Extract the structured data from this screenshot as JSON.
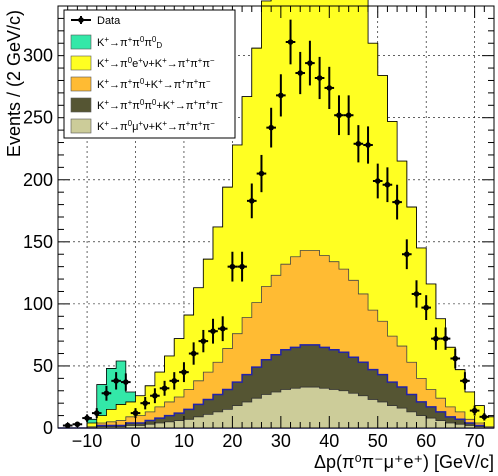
{
  "chart_data": {
    "type": "bar",
    "xlabel": "Δp(π⁰π⁻μ⁺e⁺) [GeV/c]",
    "ylabel": "Events / (2 GeV/c)",
    "xlim": [
      -16,
      74
    ],
    "ylim": [
      0,
      340
    ],
    "x_ticks": [
      -10,
      0,
      10,
      20,
      30,
      40,
      50,
      60,
      70
    ],
    "y_ticks": [
      0,
      50,
      100,
      150,
      200,
      250,
      300
    ],
    "grid": true,
    "legend_position": "top-left",
    "bin_width": 2,
    "bins": [
      -16,
      -14,
      -12,
      -10,
      -8,
      -6,
      -4,
      -2,
      0,
      2,
      4,
      6,
      8,
      10,
      12,
      14,
      16,
      18,
      20,
      22,
      24,
      26,
      28,
      30,
      32,
      34,
      36,
      38,
      40,
      42,
      44,
      46,
      48,
      50,
      52,
      54,
      56,
      58,
      60,
      62,
      64,
      66,
      68,
      70,
      72
    ],
    "legend": [
      {
        "label": "Data",
        "style": "marker"
      },
      {
        "label": "K⁺→π⁺π⁰π⁰_D",
        "color": "#33e8a8",
        "style": "fill"
      },
      {
        "label": "K⁺→π⁰e⁺ν+K⁺→π⁺π⁺π⁻",
        "color": "#ffff22",
        "style": "fill"
      },
      {
        "label": "K⁺→π⁺π⁰+K⁺→π⁺π⁺π⁻",
        "color": "#ffbb33",
        "style": "fill"
      },
      {
        "label": "K⁺→π⁺π⁰π⁰+K⁺→π⁺π⁺π⁻",
        "color": "#555533",
        "style": "fill"
      },
      {
        "label": "K⁺→π⁰μ⁺ν+K⁺→π⁺π⁺π⁻",
        "color": "#cccc99",
        "style": "fill"
      }
    ],
    "series": [
      {
        "name": "Data",
        "x": [
          -14,
          -12,
          -10,
          -8,
          -6,
          -4,
          -2,
          0,
          2,
          4,
          6,
          8,
          10,
          12,
          14,
          16,
          18,
          20,
          22,
          24,
          26,
          28,
          30,
          32,
          34,
          36,
          38,
          40,
          42,
          44,
          46,
          48,
          50,
          52,
          54,
          56,
          58,
          60,
          62,
          64,
          66,
          68,
          70,
          72
        ],
        "y": [
          2,
          3,
          8,
          12,
          28,
          38,
          37,
          12,
          20,
          26,
          32,
          38,
          45,
          60,
          70,
          78,
          80,
          130,
          130,
          183,
          205,
          242,
          268,
          311,
          286,
          294,
          282,
          274,
          252,
          252,
          229,
          228,
          199,
          196,
          182,
          140,
          108,
          97,
          72,
          72,
          56,
          38,
          14,
          9
        ],
        "err": [
          2,
          2,
          3,
          4,
          6,
          7,
          7,
          4,
          5,
          6,
          6,
          7,
          8,
          9,
          9,
          10,
          10,
          12,
          12,
          14,
          15,
          16,
          17,
          18,
          17,
          18,
          17,
          17,
          16,
          16,
          15,
          15,
          14,
          14,
          14,
          12,
          11,
          10,
          9,
          9,
          8,
          7,
          4,
          3
        ]
      },
      {
        "name": "K⁺→π⁺π⁰π⁰_D",
        "color": "#33e8a8",
        "values": [
          0,
          0,
          0,
          3,
          25,
          33,
          35,
          8,
          0,
          0,
          0,
          0,
          0,
          0,
          0,
          0,
          0,
          0,
          0,
          0,
          0,
          0,
          0,
          0,
          0,
          0,
          0,
          0,
          0,
          0,
          0,
          0,
          0,
          0,
          0,
          0,
          0,
          0,
          0,
          0,
          0,
          0,
          0,
          0,
          0
        ]
      },
      {
        "name": "K⁺→π⁰e⁺ν+K⁺→π⁺π⁺π⁻",
        "color": "#ffff22",
        "values": [
          0,
          0,
          0,
          3,
          6,
          10,
          13,
          12,
          16,
          21,
          28,
          37,
          47,
          60,
          75,
          91,
          109,
          130,
          152,
          178,
          205,
          230,
          259,
          280,
          292,
          299,
          302,
          301,
          296,
          281,
          261,
          242,
          215,
          198,
          173,
          149,
          125,
          105,
          85,
          64,
          48,
          34,
          22,
          14,
          8
        ]
      },
      {
        "name": "K⁺→π⁺π⁰+K⁺→π⁺π⁺π⁻",
        "color": "#ffbb33",
        "values": [
          0,
          0,
          0,
          1,
          2,
          3,
          4,
          5,
          6,
          7,
          9,
          11,
          13,
          16,
          19,
          22,
          26,
          33,
          39,
          46,
          52,
          59,
          64,
          69,
          73,
          76,
          76,
          74,
          71,
          67,
          62,
          55,
          48,
          43,
          37,
          33,
          26,
          19,
          14,
          11,
          8,
          6,
          3,
          2,
          1
        ]
      },
      {
        "name": "K⁺→π⁺π⁰π⁰+K⁺→π⁺π⁺π⁻",
        "color": "#555533",
        "values": [
          0,
          0,
          0,
          0,
          1,
          1,
          1,
          2,
          2,
          3,
          4,
          5,
          6,
          8,
          10,
          12,
          14,
          16,
          19,
          22,
          25,
          28,
          30,
          32,
          33,
          34,
          34,
          33,
          32,
          31,
          29,
          27,
          24,
          22,
          19,
          17,
          14,
          11,
          9,
          7,
          5,
          4,
          2,
          1,
          0
        ]
      },
      {
        "name": "K⁺→π⁰μ⁺ν+K⁺→π⁺π⁺π⁻",
        "color": "#cccc99",
        "values": [
          0,
          0,
          0,
          0,
          1,
          1,
          1,
          2,
          2,
          3,
          4,
          5,
          6,
          7,
          9,
          11,
          13,
          15,
          18,
          21,
          24,
          27,
          29,
          31,
          32,
          33,
          33,
          32,
          31,
          30,
          28,
          26,
          23,
          21,
          18,
          16,
          13,
          10,
          8,
          6,
          4,
          3,
          2,
          1,
          0
        ]
      }
    ]
  }
}
